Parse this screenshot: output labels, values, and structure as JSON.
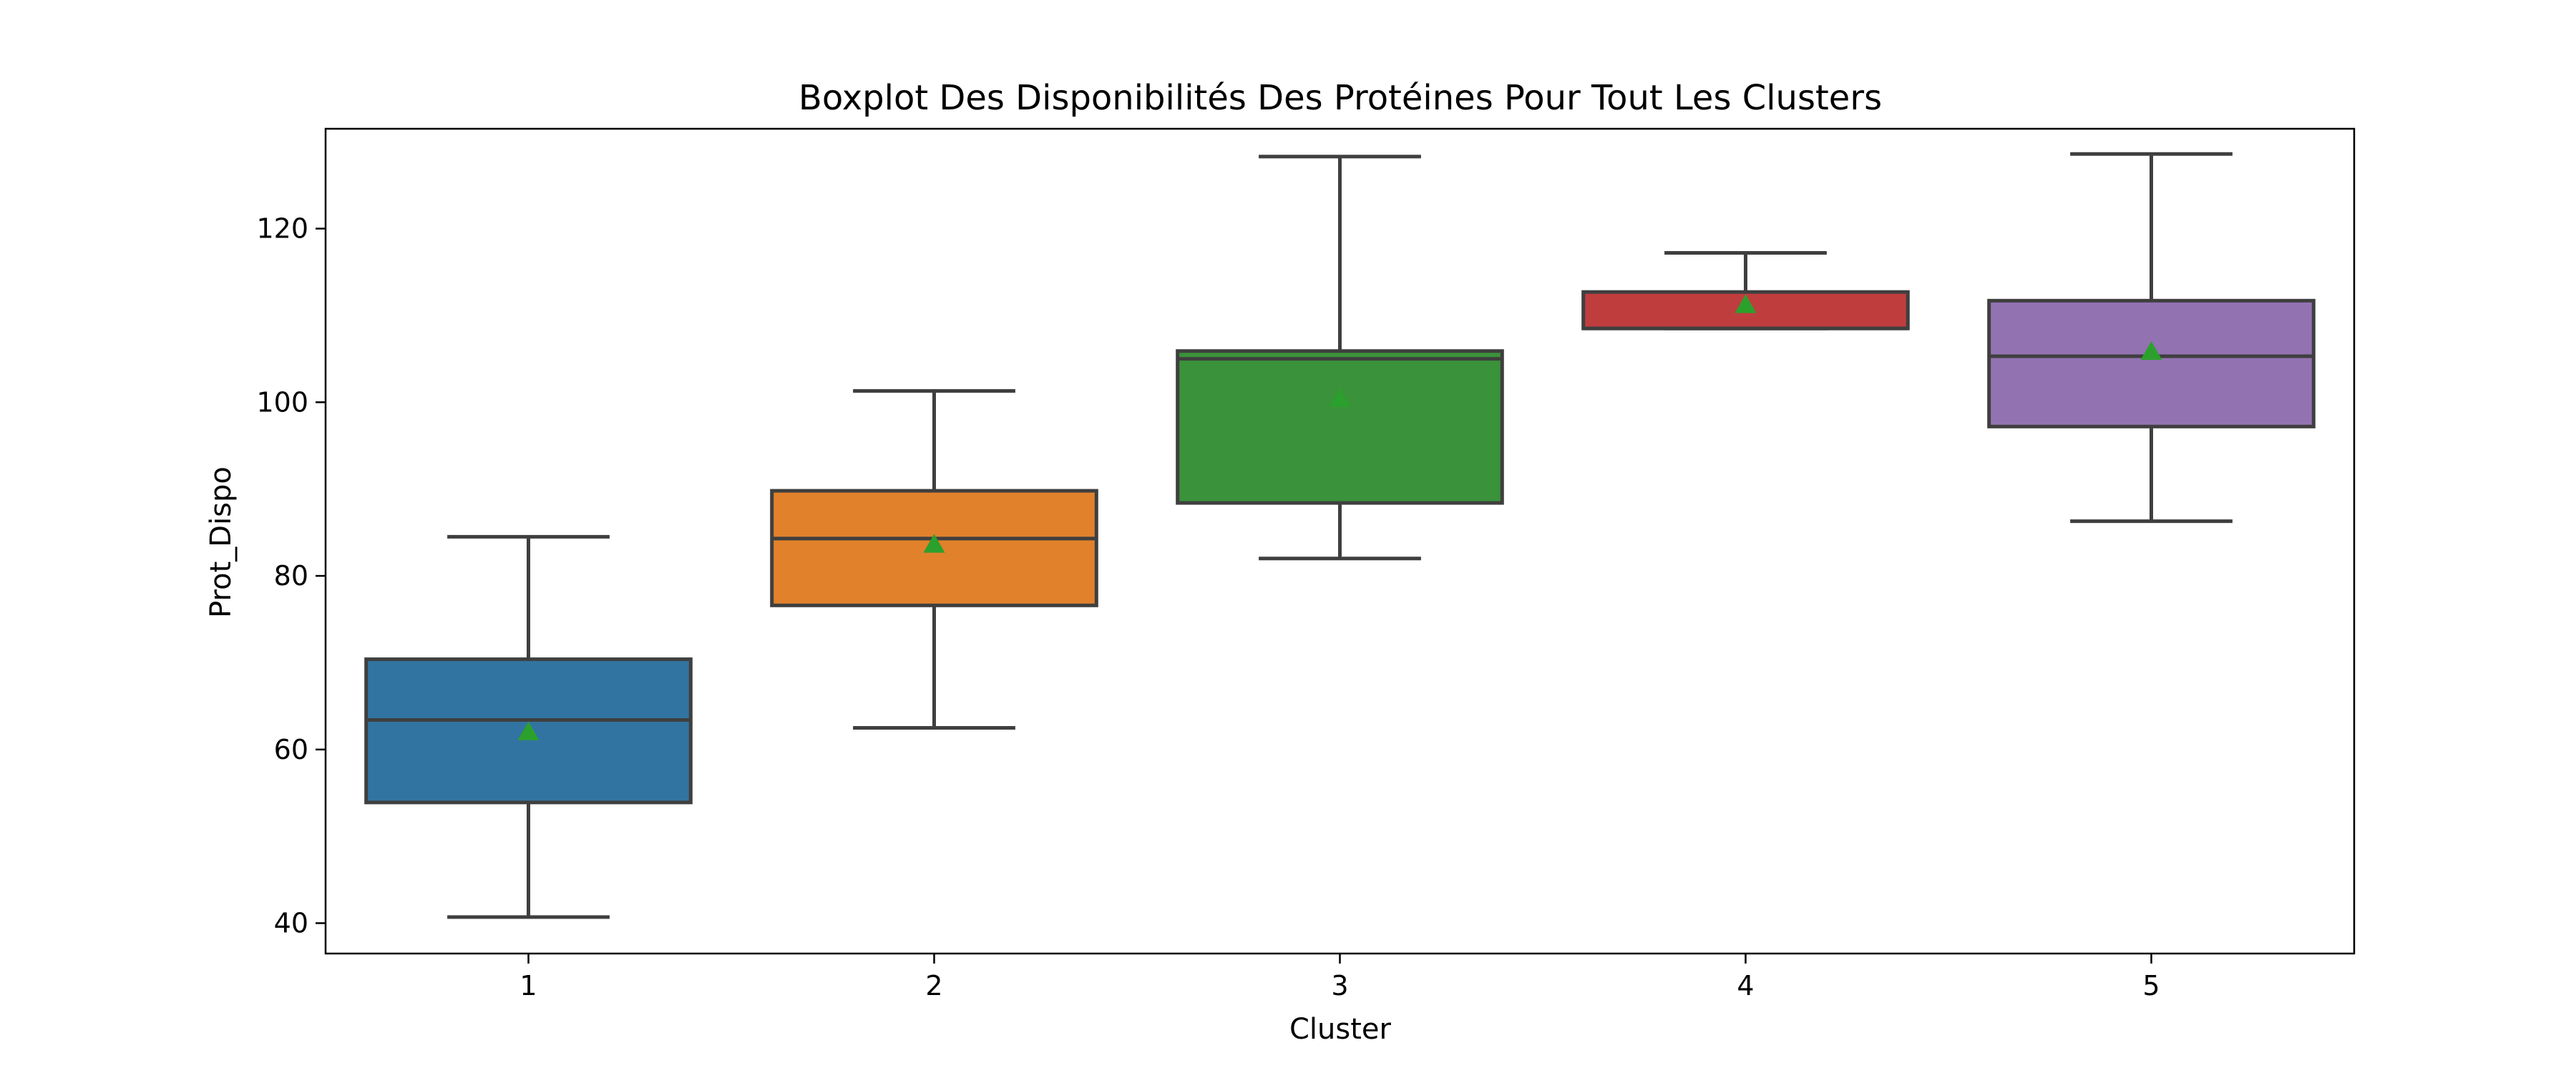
{
  "chart_data": {
    "type": "boxplot",
    "title": "Boxplot Des Disponibilités Des Protéines Pour Tout Les Clusters",
    "xlabel": "Cluster",
    "ylabel": "Prot_Dispo",
    "ylim": [
      36.5,
      131.5
    ],
    "yticks": [
      40,
      60,
      80,
      100,
      120
    ],
    "ytick_labels": [
      "40",
      "60",
      "80",
      "100",
      "120"
    ],
    "categories": [
      "1",
      "2",
      "3",
      "4",
      "5"
    ],
    "grid": false,
    "legend": "none",
    "mean_marker_color": "#2ca02c",
    "edge_color": "#3f3f3f",
    "boxes": [
      {
        "category": "1",
        "whisker_low": 40.7,
        "q1": 53.9,
        "median": 63.4,
        "q3": 70.4,
        "whisker_high": 84.5,
        "mean": 62.0,
        "color": "#3274a1"
      },
      {
        "category": "2",
        "whisker_low": 62.5,
        "q1": 76.6,
        "median": 84.3,
        "q3": 89.8,
        "whisker_high": 101.3,
        "mean": 83.6,
        "color": "#e1812c"
      },
      {
        "category": "3",
        "whisker_low": 82.0,
        "q1": 88.4,
        "median": 105.0,
        "q3": 105.9,
        "whisker_high": 128.3,
        "mean": 100.4,
        "color": "#3a923a"
      },
      {
        "category": "4",
        "whisker_low": 108.5,
        "q1": 108.5,
        "median": 108.5,
        "q3": 112.7,
        "whisker_high": 117.2,
        "mean": 111.2,
        "color": "#c03d3e"
      },
      {
        "category": "5",
        "whisker_low": 86.3,
        "q1": 97.2,
        "median": 105.3,
        "q3": 111.7,
        "whisker_high": 128.6,
        "mean": 105.8,
        "color": "#9372b2"
      }
    ]
  }
}
